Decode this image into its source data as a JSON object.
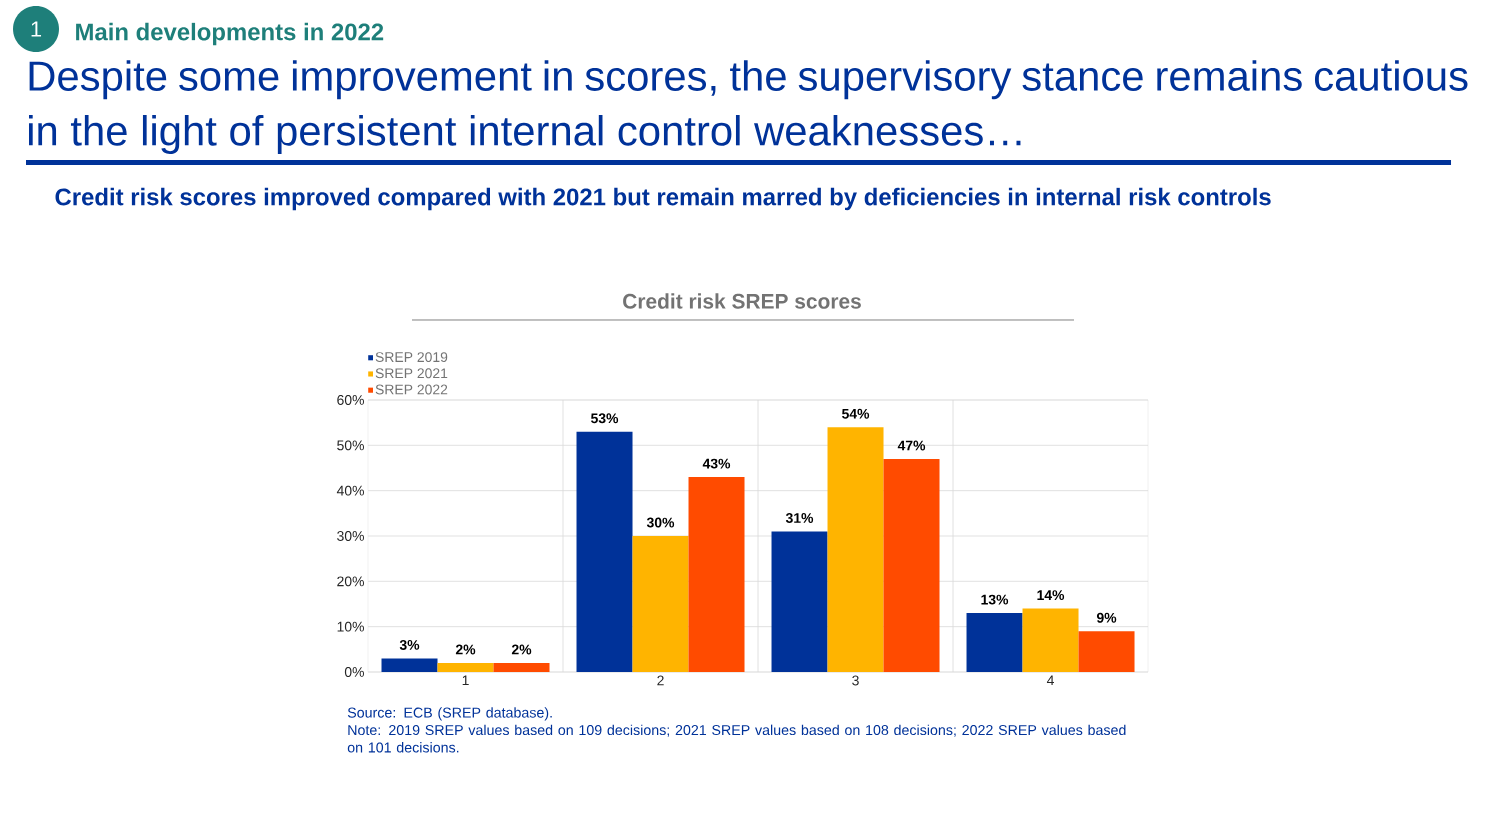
{
  "chart_data": {
    "type": "bar",
    "title": "Credit risk SREP scores",
    "annotations": [
      "1",
      "Main developments in 2022",
      "Despite some improvement in scores, the supervisory stance remains cautious in the light of persistent internal control weaknesses…",
      "Credit risk scores improved compared with 2021 but remain marred by deficiencies in internal risk controls",
      "Source: ECB (SREP database).",
      "Note: 2019 SREP values based on 109 decisions; 2021 SREP values based on 108 decisions; 2022 SREP values based on 101 decisions."
    ],
    "categories": [
      "1",
      "2",
      "3",
      "4"
    ],
    "series": [
      {
        "name": "SREP 2019",
        "color": "#003299",
        "values": [
          3,
          53,
          31,
          13
        ],
        "value_labels": [
          "3%",
          "53%",
          "31%",
          "13%"
        ]
      },
      {
        "name": "SREP 2021",
        "color": "#ffb400",
        "values": [
          2,
          30,
          54,
          14
        ],
        "value_labels": [
          "2%",
          "30%",
          "54%",
          "14%"
        ]
      },
      {
        "name": "SREP 2022",
        "color": "#ff4b00",
        "values": [
          2,
          43,
          47,
          9
        ],
        "value_labels": [
          "2%",
          "43%",
          "47%",
          "9%"
        ]
      }
    ],
    "ylim": [
      0,
      60
    ],
    "yticks": [
      {
        "value": 0,
        "label": "0%"
      },
      {
        "value": 10,
        "label": "10%"
      },
      {
        "value": 20,
        "label": "20%"
      },
      {
        "value": 30,
        "label": "30%"
      },
      {
        "value": 40,
        "label": "40%"
      },
      {
        "value": 50,
        "label": "50%"
      },
      {
        "value": 60,
        "label": "60%"
      }
    ],
    "grid": true,
    "legend": "top left"
  }
}
